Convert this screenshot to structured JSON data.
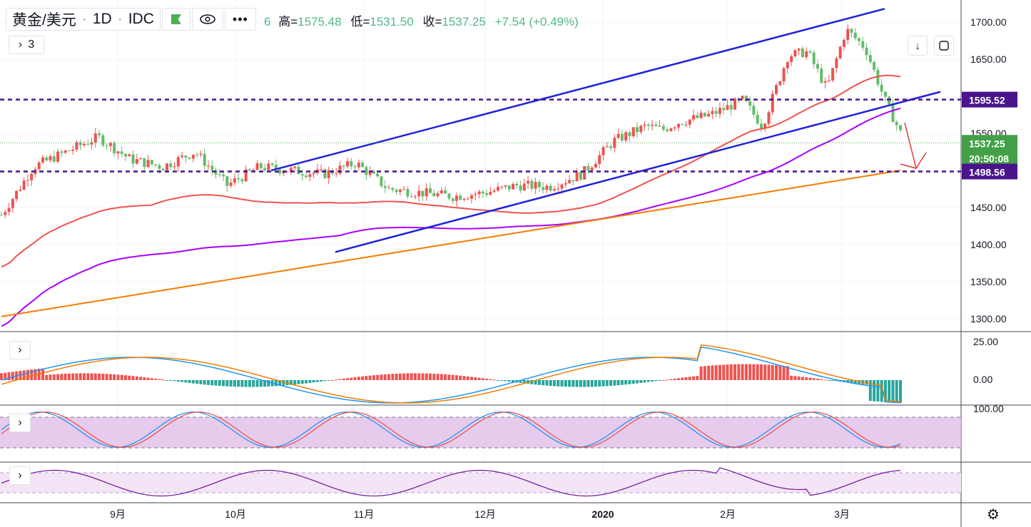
{
  "header": {
    "symbol": "黄金/美元 · 1D · IDC",
    "symbol_name": "黄金/美元",
    "interval": "1D",
    "source": "IDC",
    "ohlc_prefix": "6",
    "high_label": "高=",
    "high": "1575.48",
    "low_label": "低=",
    "low": "1531.50",
    "close_label": "收=",
    "close": "1537.25",
    "change": "+7.54 (+0.49%)",
    "indicator_count": "3",
    "collapse_glyph": "›"
  },
  "colors": {
    "up": "#ef5350",
    "down": "#66bb6a",
    "ma_red": "#ef5350",
    "ma_purple": "#aa00ff",
    "ma_orange": "#f57c00",
    "channel": "#1e22d6",
    "level": "#4a148c",
    "macd_fast": "#2196f3",
    "macd_slow": "#f57c00",
    "stoch_band": "#e1bee7"
  },
  "price_axis": {
    "ticks": [
      "1700.00",
      "1650.00",
      "1600.00",
      "1550.00",
      "1450.00",
      "1400.00",
      "1350.00",
      "1300.00"
    ],
    "tick_values": [
      1700,
      1650,
      1600,
      1550,
      1450,
      1400,
      1350,
      1300
    ],
    "range": [
      1280,
      1725
    ],
    "labels": [
      {
        "text": "1595.52",
        "value": 1595.52,
        "bg": "#4a148c"
      },
      {
        "text": "1537.25",
        "value": 1537.25,
        "bg": "#43a047"
      },
      {
        "text": "20:50:08",
        "value": 1517,
        "bg": "#43a047"
      },
      {
        "text": "1498.56",
        "value": 1498.56,
        "bg": "#4a148c"
      }
    ]
  },
  "time_axis": [
    "9月",
    "10月",
    "11月",
    "12月",
    "2020",
    "2月",
    "3月"
  ],
  "panes": {
    "macd_ticks": [
      "25.00",
      "0.00"
    ],
    "stoch_ticks": [
      "100.00"
    ]
  },
  "chart_data": {
    "type": "candlestick",
    "xlabel": "",
    "ylabel": "",
    "series": [
      {
        "name": "",
        "note": "daily candles"
      },
      {
        "name": "",
        "note": "moving average (red)"
      },
      {
        "name": "",
        "note": "moving average (purple)"
      },
      {
        "name": "",
        "note": "moving average (orange)"
      }
    ],
    "levels": [
      1595.52,
      1498.56
    ],
    "last_close": 1537.25,
    "channel_upper": [
      [
        1,
        1500
      ],
      [
        148,
        1718
      ]
    ],
    "channel_lower": [
      [
        -26,
        1390
      ],
      [
        164,
        1606
      ]
    ]
  }
}
